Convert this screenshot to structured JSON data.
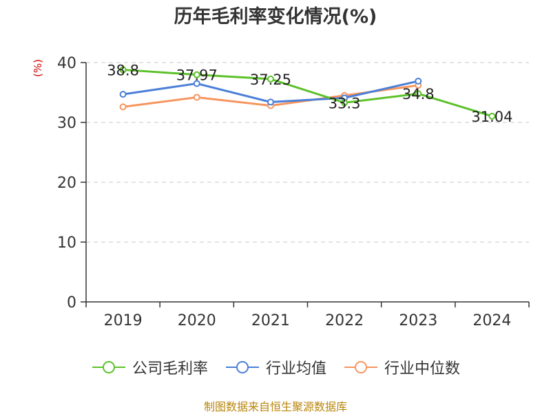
{
  "chart_data": {
    "type": "line",
    "title": "历年毛利率变化情况(%)",
    "y_unit_label": "(%)",
    "categories": [
      "2019",
      "2020",
      "2021",
      "2022",
      "2023",
      "2024"
    ],
    "y_ticks": [
      "0",
      "10",
      "20",
      "30",
      "40"
    ],
    "ylim": [
      0,
      40
    ],
    "grid": true,
    "legend_position": "bottom",
    "series": [
      {
        "name": "公司毛利率",
        "color": "#5cc12a",
        "values": [
          38.8,
          37.97,
          37.25,
          33.3,
          34.8,
          31.04
        ],
        "labels": [
          "38.8",
          "37.97",
          "37.25",
          "33.3",
          "34.8",
          "31.04"
        ]
      },
      {
        "name": "行业均值",
        "color": "#4a7fd8",
        "values": [
          34.7,
          36.5,
          33.4,
          34.1,
          36.9,
          null
        ]
      },
      {
        "name": "行业中位数",
        "color": "#f7955e",
        "values": [
          32.6,
          34.2,
          32.8,
          34.5,
          36.2,
          null
        ]
      }
    ]
  },
  "source": "制图数据来自恒生聚源数据库"
}
